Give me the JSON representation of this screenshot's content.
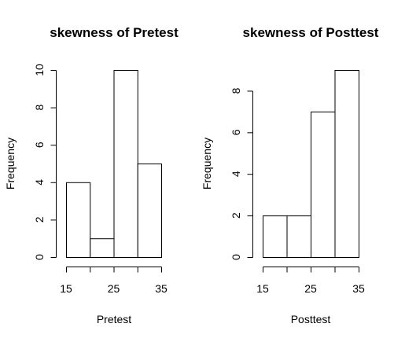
{
  "chart_data": [
    {
      "type": "bar",
      "title": "skewness of Pretest",
      "xlabel": "Pretest",
      "ylabel": "Frequency",
      "bins": [
        [
          15,
          20
        ],
        [
          20,
          25
        ],
        [
          25,
          30
        ],
        [
          30,
          35
        ]
      ],
      "values": [
        4,
        1,
        10,
        5
      ],
      "xlim": [
        15,
        35
      ],
      "ylim": [
        0,
        10
      ],
      "x_ticks": [
        15,
        25,
        35
      ],
      "x_tick_positions": [
        15,
        20,
        25,
        30,
        35
      ],
      "y_ticks": [
        0,
        2,
        4,
        6,
        8,
        10
      ],
      "grid": false,
      "legend": "none",
      "bar_fill": "#ffffff",
      "bar_stroke": "#000000"
    },
    {
      "type": "bar",
      "title": "skewness of Posttest",
      "xlabel": "Posttest",
      "ylabel": "Frequency",
      "bins": [
        [
          15,
          20
        ],
        [
          20,
          25
        ],
        [
          25,
          30
        ],
        [
          30,
          35
        ]
      ],
      "values": [
        2,
        2,
        7,
        9
      ],
      "xlim": [
        15,
        35
      ],
      "ylim": [
        0,
        9
      ],
      "x_ticks": [
        15,
        25,
        35
      ],
      "x_tick_positions": [
        15,
        20,
        25,
        30,
        35
      ],
      "y_ticks": [
        0,
        2,
        4,
        6,
        8
      ],
      "grid": false,
      "legend": "none",
      "bar_fill": "#ffffff",
      "bar_stroke": "#000000"
    }
  ]
}
